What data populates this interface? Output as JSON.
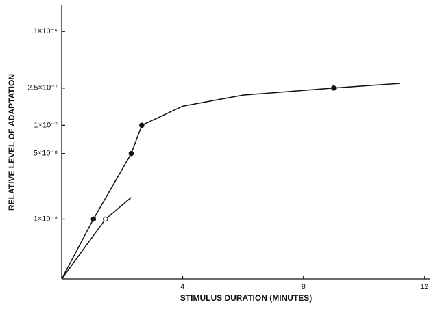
{
  "chart_data": {
    "type": "scatter",
    "x_label": "STIMULUS DURATION (MINUTES)",
    "y_label": "RELATIVE LEVEL OF ADAPTATION",
    "xlim": [
      0,
      12.2
    ],
    "xticks": [
      4,
      8,
      12
    ],
    "ylim": [
      2.3e-09,
      1.9e-06
    ],
    "log_y": true,
    "yticks": [
      {
        "value": 1e-08,
        "label": "1×10⁻⁸"
      },
      {
        "value": 5e-08,
        "label": "5×10⁻⁸"
      },
      {
        "value": 1e-07,
        "label": "1×10⁻⁷"
      },
      {
        "value": 2.5e-07,
        "label": "2.5×10⁻⁷"
      },
      {
        "value": 1e-06,
        "label": "1×10⁻⁶"
      }
    ],
    "grid": false,
    "series": [
      {
        "style": "line",
        "color": "#111",
        "x": [
          0,
          1.05,
          2.3,
          2.65,
          4,
          6,
          9,
          11.2
        ],
        "values": [
          2.3e-09,
          1e-08,
          5e-08,
          1e-07,
          1.6e-07,
          2.1e-07,
          2.5e-07,
          2.8e-07
        ]
      },
      {
        "style": "line",
        "color": "#111",
        "x": [
          0,
          1.45,
          2.3
        ],
        "values": [
          2.3e-09,
          1e-08,
          1.7e-08
        ]
      },
      {
        "style": "filled",
        "color": "#111",
        "x": [
          1.05,
          2.3,
          2.65,
          9
        ],
        "values": [
          1e-08,
          5e-08,
          1e-07,
          2.5e-07
        ]
      },
      {
        "style": "open",
        "color": "#111",
        "x": [
          1.45
        ],
        "values": [
          1e-08
        ]
      }
    ]
  }
}
